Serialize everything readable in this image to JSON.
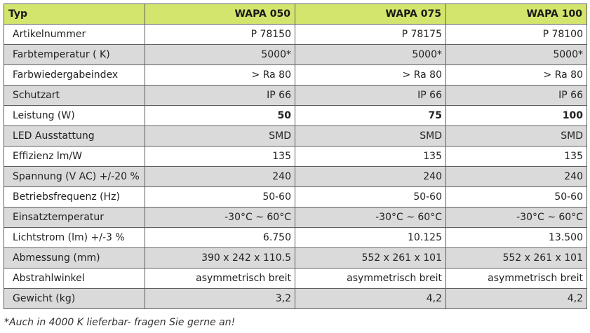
{
  "table": {
    "header": [
      "Typ",
      "WAPA 050",
      "WAPA 075",
      "WAPA 100"
    ],
    "rows": [
      {
        "label": "Artikelnummer",
        "values": [
          "P 78150",
          "P 78175",
          "P 78100"
        ],
        "bold": false,
        "shaded": false
      },
      {
        "label": "Farbtemperatur ( K)",
        "values": [
          "5000*",
          "5000*",
          "5000*"
        ],
        "bold": false,
        "shaded": true
      },
      {
        "label": "Farbwiedergabeindex",
        "values": [
          "> Ra 80",
          "> Ra 80",
          "> Ra 80"
        ],
        "bold": false,
        "shaded": false
      },
      {
        "label": "Schutzart",
        "values": [
          "IP 66",
          "IP 66",
          "IP 66"
        ],
        "bold": false,
        "shaded": true
      },
      {
        "label": "Leistung (W)",
        "values": [
          "50",
          "75",
          "100"
        ],
        "bold": true,
        "shaded": false
      },
      {
        "label": "LED Ausstattung",
        "values": [
          "SMD",
          "SMD",
          "SMD"
        ],
        "bold": false,
        "shaded": true
      },
      {
        "label": "Effizienz lm/W",
        "values": [
          "135",
          "135",
          "135"
        ],
        "bold": false,
        "shaded": false
      },
      {
        "label": "Spannung (V AC) +/-20 %",
        "values": [
          "240",
          "240",
          "240"
        ],
        "bold": false,
        "shaded": true
      },
      {
        "label": "Betriebsfrequenz (Hz)",
        "values": [
          "50-60",
          "50-60",
          "50-60"
        ],
        "bold": false,
        "shaded": false
      },
      {
        "label": "Einsatztemperatur",
        "values": [
          "-30°C ~ 60°C",
          "-30°C ~ 60°C",
          "-30°C ~ 60°C"
        ],
        "bold": false,
        "shaded": true
      },
      {
        "label": "Lichtstrom (lm) +/-3 %",
        "values": [
          "6.750",
          "10.125",
          "13.500"
        ],
        "bold": false,
        "shaded": false
      },
      {
        "label": "Abmessung (mm)",
        "values": [
          "390 x 242 x 110.5",
          "552 x 261 x 101",
          "552 x 261 x 101"
        ],
        "bold": false,
        "shaded": true
      },
      {
        "label": "Abstrahlwinkel",
        "values": [
          "asymmetrisch breit",
          "asymmetrisch breit",
          "asymmetrisch breit"
        ],
        "bold": false,
        "shaded": false
      },
      {
        "label": "Gewicht (kg)",
        "values": [
          "3,2",
          "4,2",
          "4,2"
        ],
        "bold": false,
        "shaded": true
      }
    ]
  },
  "footnote": "*Auch in 4000 K lieferbar- fragen Sie gerne an!",
  "colors": {
    "header_bg": "#d4e56d",
    "shaded_row_bg": "#dadada",
    "border": "#5f5f5f"
  }
}
